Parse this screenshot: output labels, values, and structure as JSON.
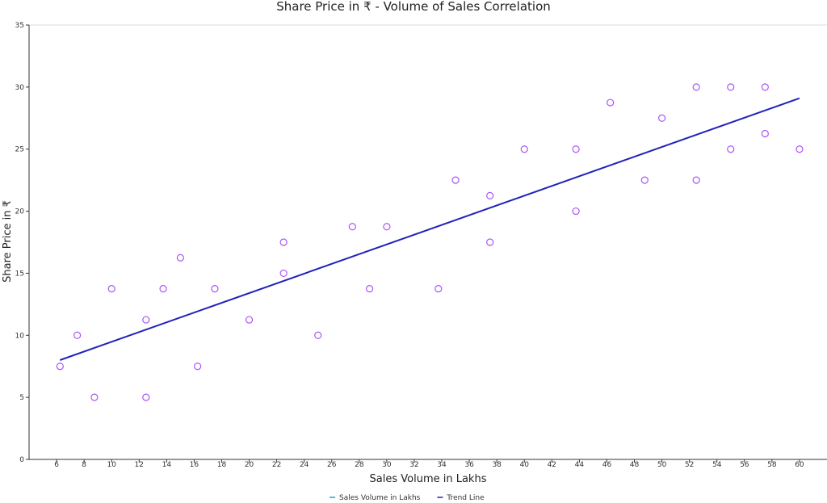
{
  "chart_data": {
    "type": "scatter",
    "title": "Share Price in ₹ - Volume of Sales Correlation",
    "xlabel": "Sales Volume in Lakhs",
    "ylabel": "Share Price in ₹",
    "xlim": [
      4,
      62
    ],
    "ylim": [
      0,
      35
    ],
    "xticks": [
      6,
      8,
      10,
      12,
      14,
      16,
      18,
      20,
      22,
      24,
      26,
      28,
      30,
      32,
      34,
      36,
      38,
      40,
      42,
      44,
      46,
      48,
      50,
      52,
      54,
      56,
      58,
      60
    ],
    "yticks": [
      0,
      5,
      10,
      15,
      20,
      25,
      30,
      35
    ],
    "grid": false,
    "legend_position": "bottom-center",
    "series": [
      {
        "name": "Sales Volume in Lakhs",
        "kind": "scatter",
        "color": "#a855f7",
        "points": [
          [
            6.25,
            7.5
          ],
          [
            7.5,
            10
          ],
          [
            8.75,
            5
          ],
          [
            10,
            13.75
          ],
          [
            12.5,
            11.25
          ],
          [
            12.5,
            5
          ],
          [
            13.75,
            13.75
          ],
          [
            15,
            16.25
          ],
          [
            16.25,
            7.5
          ],
          [
            17.5,
            13.75
          ],
          [
            20,
            11.25
          ],
          [
            22.5,
            17.5
          ],
          [
            22.5,
            15
          ],
          [
            25,
            10
          ],
          [
            27.5,
            18.75
          ],
          [
            28.75,
            13.75
          ],
          [
            30,
            18.75
          ],
          [
            33.75,
            13.75
          ],
          [
            35,
            22.5
          ],
          [
            37.5,
            21.25
          ],
          [
            37.5,
            17.5
          ],
          [
            40,
            25
          ],
          [
            43.75,
            25
          ],
          [
            43.75,
            20
          ],
          [
            46.25,
            28.75
          ],
          [
            48.75,
            22.5
          ],
          [
            50,
            27.5
          ],
          [
            52.5,
            30
          ],
          [
            52.5,
            22.5
          ],
          [
            55,
            30
          ],
          [
            55,
            25
          ],
          [
            57.5,
            30
          ],
          [
            57.5,
            26.25
          ],
          [
            60,
            25
          ]
        ]
      },
      {
        "name": "Trend Line",
        "kind": "line",
        "color": "#2222bb",
        "points": [
          [
            6.25,
            8
          ],
          [
            60,
            29.1
          ]
        ]
      }
    ]
  },
  "legend": {
    "items": [
      {
        "label": "Sales Volume in Lakhs",
        "color": "#22a0cc"
      },
      {
        "label": "Trend Line",
        "color": "#2222bb"
      }
    ]
  }
}
